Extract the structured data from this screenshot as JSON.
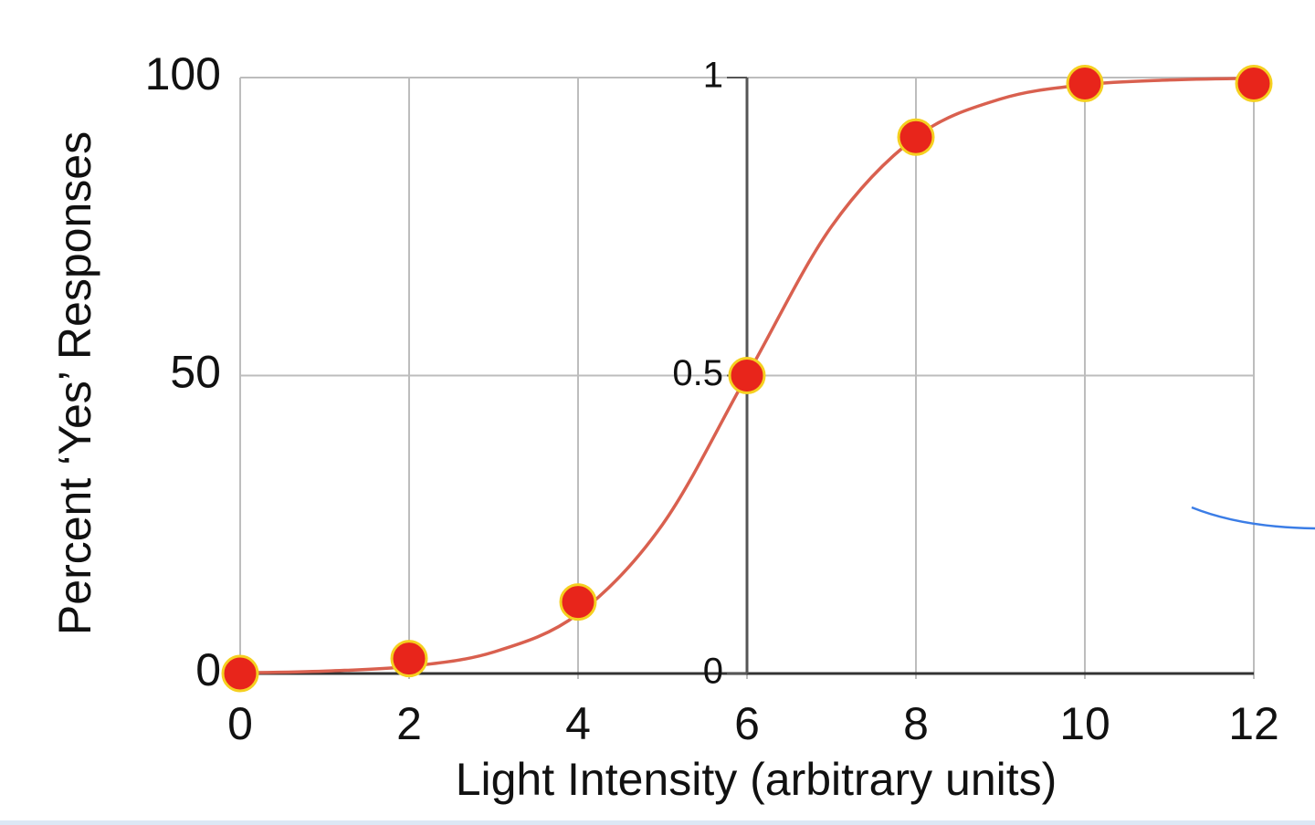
{
  "chart_data": {
    "type": "scatter",
    "xlabel": "Light Intensity (arbitrary units)",
    "ylabel": "Percent ‘Yes’ Responses",
    "xlim": [
      0,
      12
    ],
    "xticks": [
      0,
      2,
      4,
      6,
      8,
      10,
      12
    ],
    "ylim": [
      0,
      100
    ],
    "yticks": [
      0,
      50,
      100
    ],
    "y2lim": [
      0,
      1
    ],
    "y2ticks": [
      0,
      0.5,
      1
    ],
    "grid": true,
    "series": [
      {
        "type": "line",
        "color": "#d9604f",
        "x": [
          0,
          1,
          2,
          3,
          4,
          5,
          6,
          7,
          8,
          9,
          10,
          11,
          12
        ],
        "values": [
          0.1,
          0.4,
          1.2,
          3.6,
          10,
          25,
          50,
          75,
          90,
          96.4,
          98.8,
          99.6,
          99.9
        ]
      },
      {
        "type": "scatter",
        "color": "#e8251b",
        "edgecolor": "#f5d020",
        "x": [
          0,
          2,
          4,
          6,
          8,
          10,
          12
        ],
        "values": [
          0,
          2.5,
          12,
          50,
          90,
          99,
          99
        ]
      }
    ]
  }
}
